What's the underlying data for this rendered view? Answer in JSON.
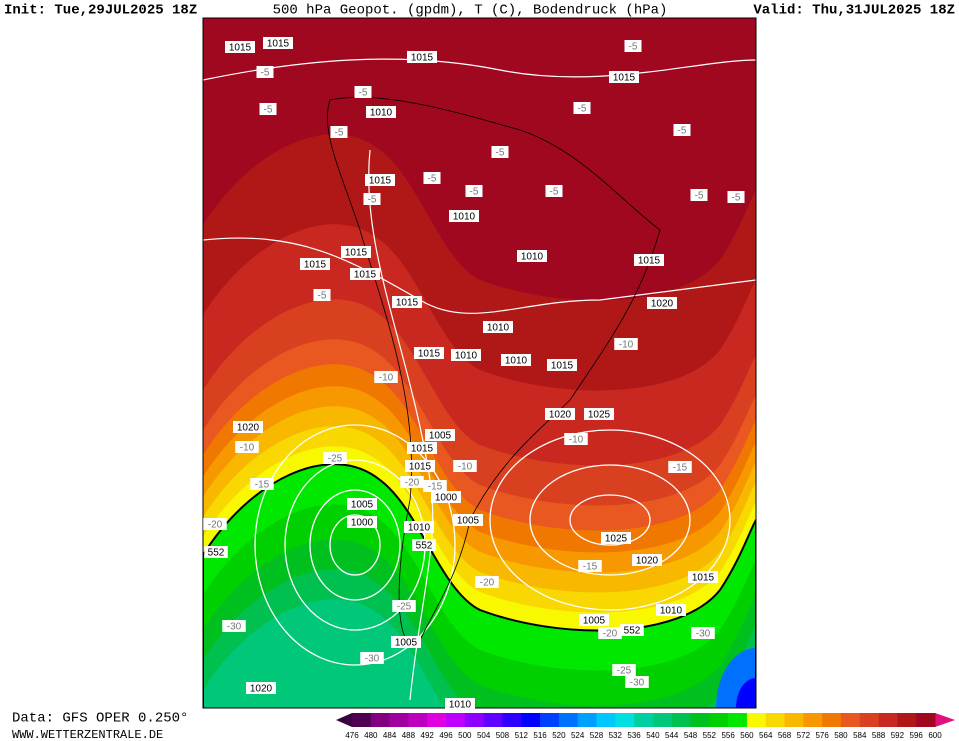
{
  "header": {
    "init": "Init: Tue,29JUL2025 18Z",
    "title": "500 hPa Geopot. (gpdm), T (C), Bodendruck (hPa)",
    "valid": "Valid: Thu,31JUL2025 18Z"
  },
  "footer": {
    "data_source": "Data: GFS OPER 0.250°",
    "site": "WWW.WETTERZENTRALE.DE"
  },
  "map": {
    "isobar_labels": [
      "1015",
      "1015",
      "1015",
      "1015",
      "1010",
      "1015",
      "1010",
      "1010",
      "1015",
      "1015",
      "1015",
      "1015",
      "1015",
      "1020",
      "1010",
      "1015",
      "1010",
      "1010",
      "1015",
      "1020",
      "1025",
      "1020",
      "1005",
      "1015",
      "1015",
      "1000",
      "1005",
      "1000",
      "1005",
      "1010",
      "1025",
      "1020",
      "1015",
      "1010",
      "1005",
      "1005",
      "1020",
      "1010"
    ],
    "temperature_labels": [
      "-5",
      "-5",
      "-5",
      "-5",
      "-5",
      "-5",
      "-5",
      "-5",
      "-5",
      "-5",
      "-5",
      "-5",
      "-5",
      "-5",
      "-5",
      "-10",
      "-10",
      "-10",
      "-10",
      "-10",
      "-15",
      "-15",
      "-15",
      "-20",
      "-20",
      "-20",
      "-15",
      "-25",
      "-25",
      "-30",
      "-20",
      "-30",
      "-25",
      "-30",
      "-30"
    ],
    "height_labels": [
      "552",
      "552",
      "552"
    ]
  },
  "colorbar": {
    "ticks": [
      476,
      480,
      484,
      488,
      492,
      496,
      500,
      504,
      508,
      512,
      516,
      520,
      524,
      528,
      532,
      536,
      540,
      544,
      548,
      552,
      556,
      560,
      564,
      568,
      572,
      576,
      580,
      584,
      588,
      592,
      596,
      600
    ],
    "colors": [
      "#500050",
      "#800080",
      "#a000a0",
      "#c000c0",
      "#e000e0",
      "#c000ff",
      "#9000ff",
      "#6000ff",
      "#3000ff",
      "#0000ff",
      "#0040ff",
      "#0070ff",
      "#00a0ff",
      "#00c8ff",
      "#00e0e0",
      "#00d0a0",
      "#00c878",
      "#00c050",
      "#00c020",
      "#00d000",
      "#00e800",
      "#f8f800",
      "#f8d800",
      "#f8b800",
      "#f89800",
      "#f07800",
      "#e85820",
      "#d84020",
      "#c82820",
      "#b01818",
      "#a00820"
    ]
  }
}
